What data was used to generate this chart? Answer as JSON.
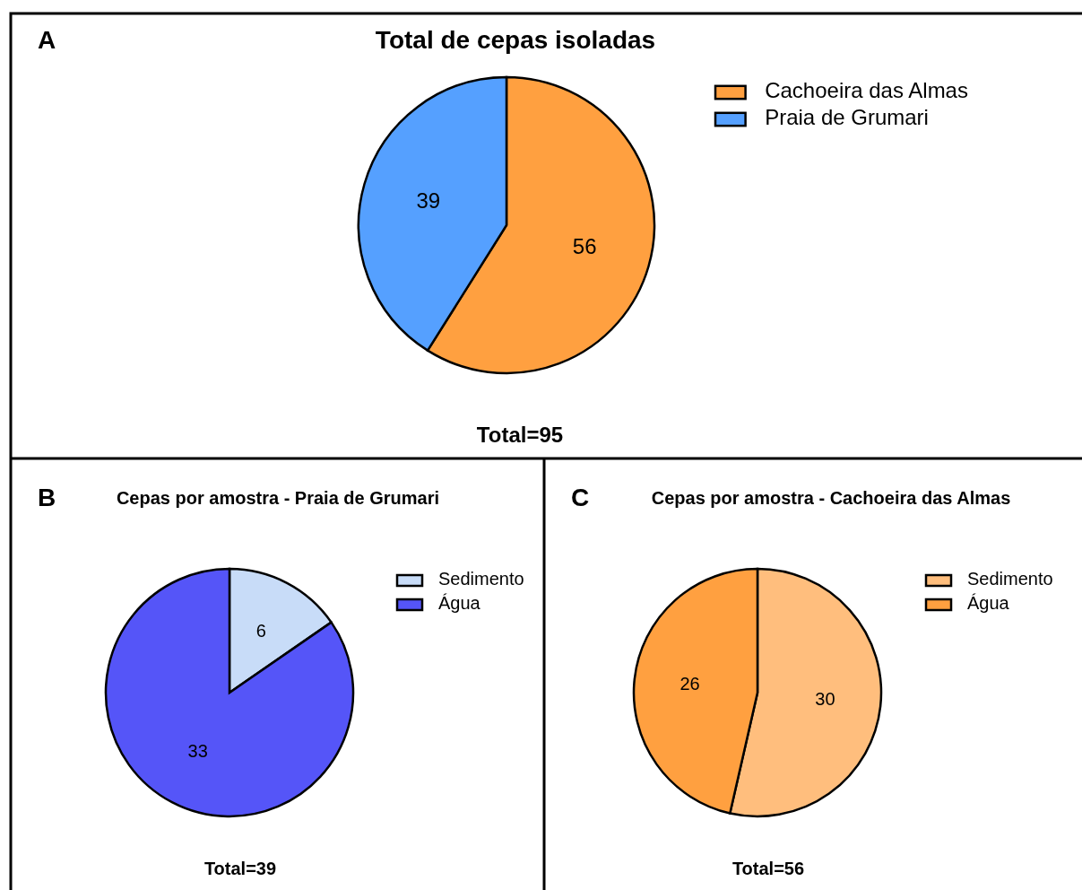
{
  "chart_data": [
    {
      "type": "pie",
      "title": "Total de cepas isoladas",
      "categories": [
        "Cachoeira das Almas",
        "Praia de Grumari"
      ],
      "values": [
        56,
        39
      ],
      "colors": [
        "#ffa040",
        "#55a0ff"
      ],
      "data_labels": true,
      "legend": "top right",
      "annotations": [
        "A",
        "Total=95"
      ]
    },
    {
      "type": "pie",
      "title": "Cepas por amostra - Praia de Grumari",
      "categories": [
        "Sedimento",
        "Água"
      ],
      "values": [
        6,
        33
      ],
      "colors": [
        "#c8dcf8",
        "#5555f8"
      ],
      "data_labels": true,
      "legend": "top right",
      "annotations": [
        "B",
        "Total=39"
      ]
    },
    {
      "type": "pie",
      "title": "Cepas por amostra - Cachoeira das Almas",
      "categories": [
        "Sedimento",
        "Água"
      ],
      "values": [
        30,
        26
      ],
      "colors": [
        "#ffbe7d",
        "#ffa040"
      ],
      "data_labels": true,
      "legend": "top right",
      "annotations": [
        "C",
        "Total=56"
      ]
    }
  ]
}
